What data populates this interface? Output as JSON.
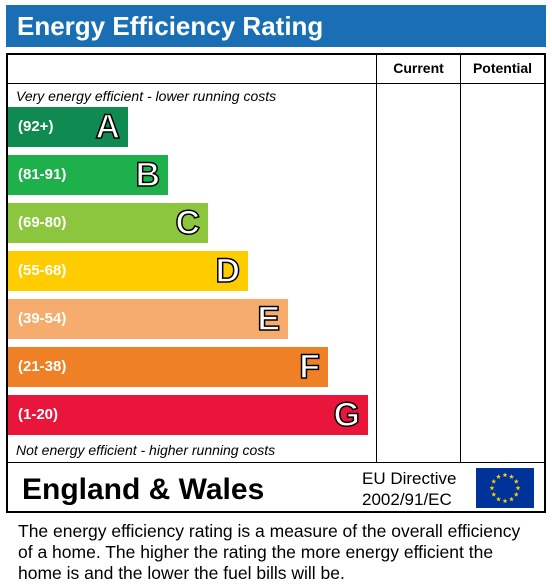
{
  "title": "Energy Efficiency Rating",
  "columns": {
    "current": "Current",
    "potential": "Potential"
  },
  "top_note": "Very energy efficient - lower running costs",
  "bottom_note": "Not energy efficient - higher running costs",
  "footer": {
    "country": "England & Wales",
    "directive_line1": "EU Directive",
    "directive_line2": "2002/91/EC"
  },
  "description": "The energy efficiency rating is a measure of the overall efficiency of a home.  The higher the rating the more energy efficient the home is and the lower the fuel bills will be.",
  "colors": {
    "title_bar": "#1a6fb4",
    "eu_flag_blue": "#003399",
    "eu_flag_stars": "#ffcc00"
  },
  "chart_data": {
    "type": "bar",
    "categories": [
      "A",
      "B",
      "C",
      "D",
      "E",
      "F",
      "G"
    ],
    "ranges": [
      "(92+)",
      "(81-91)",
      "(69-80)",
      "(55-68)",
      "(39-54)",
      "(21-38)",
      "(1-20)"
    ],
    "values": [
      1,
      2,
      3,
      4,
      5,
      6,
      7
    ],
    "colors": [
      "#0f8a51",
      "#1eb04b",
      "#8cc63e",
      "#ffcc00",
      "#f5ac6c",
      "#ef8026",
      "#e9153b"
    ],
    "current": null,
    "potential": null
  }
}
